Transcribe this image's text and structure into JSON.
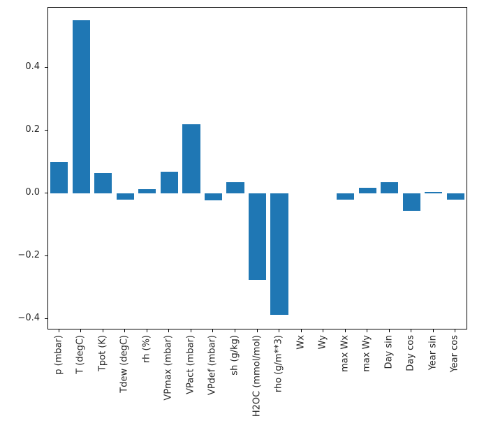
{
  "chart_data": {
    "type": "bar",
    "title": "",
    "xlabel": "",
    "ylabel": "",
    "categories": [
      "p (mbar)",
      "T (degC)",
      "Tpot (K)",
      "Tdew (degC)",
      "rh (%)",
      "VPmax (mbar)",
      "VPact (mbar)",
      "VPdef (mbar)",
      "sh (g/kg)",
      "H2OC (mmol/mol)",
      "rho (g/m**3)",
      "Wx",
      "Wy",
      "max Wx",
      "max Wy",
      "Day sin",
      "Day cos",
      "Year sin",
      "Year cos"
    ],
    "values": [
      0.1,
      0.55,
      0.065,
      -0.02,
      0.013,
      0.07,
      0.22,
      -0.022,
      0.035,
      -0.275,
      -0.385,
      0.0,
      0.0,
      -0.02,
      0.018,
      0.035,
      -0.055,
      0.004,
      -0.02
    ],
    "ylim": [
      -0.43,
      0.59
    ],
    "yticks": [
      -0.4,
      -0.2,
      0.0,
      0.2,
      0.4
    ],
    "bar_color": "#1f77b4",
    "grid": false,
    "legend": null
  }
}
